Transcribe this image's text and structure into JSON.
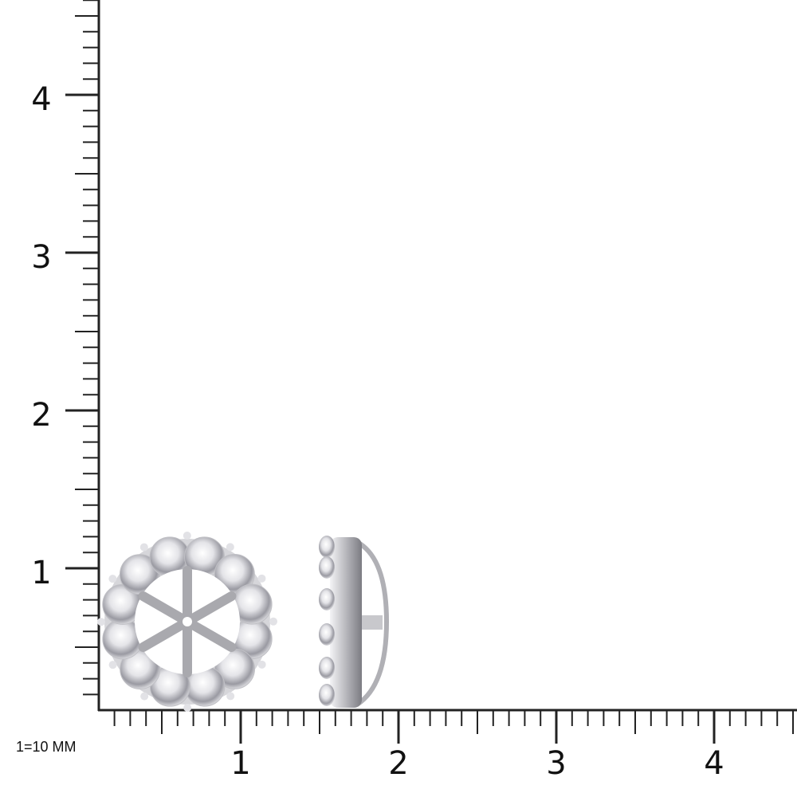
{
  "scale_note": "1=10 MM",
  "ruler": {
    "x_labels": [
      "1",
      "2",
      "3",
      "4"
    ],
    "y_labels": [
      "1",
      "2",
      "3",
      "4"
    ],
    "minor_ticks_per_unit": 10,
    "line_color": "#222222"
  },
  "product": {
    "views": [
      "front-view",
      "side-view"
    ],
    "metal_color": "#c8c8cc",
    "stone_count_front": 12
  }
}
